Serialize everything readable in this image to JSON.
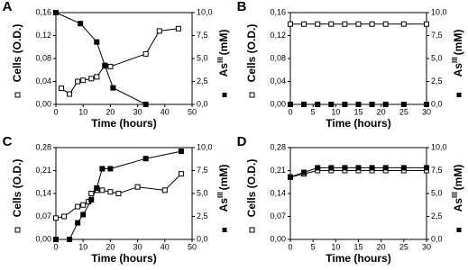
{
  "chart_data": [
    {
      "type": "line",
      "panel_label": "A",
      "xlabel": "Time (hours)",
      "ylabel": "Cells (O.D.)",
      "y2label": "As",
      "y2label_sup": "III",
      "y2label_unit": "(mM)",
      "xlim": [
        0,
        50
      ],
      "xticks": [
        0,
        10,
        20,
        30,
        40,
        50
      ],
      "ylim": [
        0,
        0.16
      ],
      "yticks": [
        {
          "value": 0,
          "label": "0,00"
        },
        {
          "value": 0.04,
          "label": "0,04"
        },
        {
          "value": 0.08,
          "label": "0,08"
        },
        {
          "value": 0.12,
          "label": "0,12"
        },
        {
          "value": 0.16,
          "label": "0,16"
        }
      ],
      "y2lim": [
        0,
        10
      ],
      "y2ticks": [
        {
          "value": 0,
          "label": "0,0"
        },
        {
          "value": 2.5,
          "label": "2,5"
        },
        {
          "value": 5,
          "label": "5,0"
        },
        {
          "value": 7.5,
          "label": "7,5"
        },
        {
          "value": 10,
          "label": "10,0"
        }
      ],
      "series": [
        {
          "color": "#000000",
          "marker": "open-square",
          "x": [
            2,
            5,
            8,
            10,
            13,
            15,
            18,
            20,
            33,
            38,
            45
          ],
          "values": [
            0.028,
            0.018,
            0.04,
            0.042,
            0.045,
            0.048,
            0.068,
            0.066,
            0.088,
            0.128,
            0.132
          ]
        },
        {
          "color": "#000000",
          "marker": "filled-square",
          "axis": "y2",
          "x": [
            0,
            9,
            15,
            18,
            21,
            33
          ],
          "values": [
            10,
            8.8,
            6.8,
            4.2,
            1.8,
            0
          ]
        }
      ]
    },
    {
      "type": "line",
      "panel_label": "B",
      "xlabel": "Time (hours)",
      "ylabel": "Cells (O.D.)",
      "y2label": "As",
      "y2label_sup": "III",
      "y2label_unit": "(mM)",
      "xlim": [
        0,
        30
      ],
      "xticks": [
        0,
        5,
        10,
        15,
        20,
        25,
        30
      ],
      "ylim": [
        0,
        0.16
      ],
      "yticks": [
        {
          "value": 0,
          "label": "0,00"
        },
        {
          "value": 0.04,
          "label": "0,04"
        },
        {
          "value": 0.08,
          "label": "0,08"
        },
        {
          "value": 0.12,
          "label": "0,12"
        },
        {
          "value": 0.16,
          "label": "0,16"
        }
      ],
      "y2lim": [
        0,
        10
      ],
      "y2ticks": [
        {
          "value": 0,
          "label": "0,0"
        },
        {
          "value": 2.5,
          "label": "2,5"
        },
        {
          "value": 5,
          "label": "5,0"
        },
        {
          "value": 7.5,
          "label": "7,5"
        },
        {
          "value": 10,
          "label": "10,0"
        }
      ],
      "series": [
        {
          "color": "#000000",
          "marker": "open-square",
          "x": [
            0,
            3,
            6,
            9,
            12,
            15,
            18,
            21,
            25,
            30
          ],
          "values": [
            0.14,
            0.14,
            0.14,
            0.14,
            0.14,
            0.14,
            0.14,
            0.14,
            0.14,
            0.14
          ]
        },
        {
          "color": "#000000",
          "marker": "filled-square",
          "axis": "y2",
          "x": [
            0,
            3,
            6,
            9,
            12,
            15,
            18,
            21,
            25,
            30
          ],
          "values": [
            0,
            0,
            0,
            0,
            0,
            0,
            0,
            0,
            0,
            0
          ]
        }
      ]
    },
    {
      "type": "line",
      "panel_label": "C",
      "xlabel": "Time (hours)",
      "ylabel": "Cells (O.D.)",
      "y2label": "As",
      "y2label_sup": "III",
      "y2label_unit": "(mM)",
      "xlim": [
        0,
        50
      ],
      "xticks": [
        0,
        10,
        20,
        30,
        40,
        50
      ],
      "ylim": [
        0,
        0.28
      ],
      "yticks": [
        {
          "value": 0,
          "label": "0,00"
        },
        {
          "value": 0.07,
          "label": "0,07"
        },
        {
          "value": 0.14,
          "label": "0,14"
        },
        {
          "value": 0.21,
          "label": "0,21"
        },
        {
          "value": 0.28,
          "label": "0,28"
        }
      ],
      "y2lim": [
        0,
        10
      ],
      "y2ticks": [
        {
          "value": 0,
          "label": "0,0"
        },
        {
          "value": 2.5,
          "label": "2,5"
        },
        {
          "value": 5,
          "label": "5,0"
        },
        {
          "value": 7.5,
          "label": "7,5"
        },
        {
          "value": 10,
          "label": "10,0"
        }
      ],
      "series": [
        {
          "color": "#000000",
          "marker": "open-square",
          "x": [
            0,
            3,
            8,
            10,
            12,
            13,
            15,
            17,
            20,
            23,
            30,
            40,
            46
          ],
          "values": [
            0.065,
            0.07,
            0.1,
            0.105,
            0.115,
            0.14,
            0.15,
            0.15,
            0.145,
            0.14,
            0.16,
            0.15,
            0.2
          ]
        },
        {
          "color": "#000000",
          "marker": "filled-square",
          "axis": "y2",
          "x": [
            0,
            5,
            8,
            10,
            13,
            15,
            17,
            20,
            33,
            46
          ],
          "values": [
            0,
            0,
            1.8,
            2.7,
            4.3,
            5.6,
            7.7,
            7.7,
            8.8,
            9.6
          ]
        }
      ]
    },
    {
      "type": "line",
      "panel_label": "D",
      "xlabel": "Time (hours)",
      "ylabel": "Cells (O.D.)",
      "y2label": "As",
      "y2label_sup": "III",
      "y2label_unit": "(mM)",
      "xlim": [
        0,
        30
      ],
      "xticks": [
        0,
        5,
        10,
        15,
        20,
        25,
        30
      ],
      "ylim": [
        0,
        0.28
      ],
      "yticks": [
        {
          "value": 0,
          "label": "0,00"
        },
        {
          "value": 0.07,
          "label": "0,07"
        },
        {
          "value": 0.14,
          "label": "0,14"
        },
        {
          "value": 0.21,
          "label": "0,21"
        },
        {
          "value": 0.28,
          "label": "0,28"
        }
      ],
      "y2lim": [
        0,
        10
      ],
      "y2ticks": [
        {
          "value": 0,
          "label": "0,0"
        },
        {
          "value": 2.5,
          "label": "2,5"
        },
        {
          "value": 5,
          "label": "5,0"
        },
        {
          "value": 7.5,
          "label": "7,5"
        },
        {
          "value": 10,
          "label": "10,0"
        }
      ],
      "series": [
        {
          "color": "#000000",
          "marker": "open-square",
          "x": [
            0,
            3,
            6,
            9,
            12,
            15,
            18,
            21,
            25,
            30
          ],
          "values": [
            0.19,
            0.2,
            0.21,
            0.21,
            0.21,
            0.21,
            0.21,
            0.21,
            0.21,
            0.21
          ]
        },
        {
          "color": "#000000",
          "marker": "filled-square",
          "axis": "y2",
          "x": [
            0,
            3,
            6,
            9,
            12,
            15,
            18,
            21,
            25,
            30
          ],
          "values": [
            6.8,
            7.3,
            7.8,
            7.8,
            7.8,
            7.8,
            7.8,
            7.8,
            7.8,
            7.8
          ]
        }
      ]
    }
  ]
}
